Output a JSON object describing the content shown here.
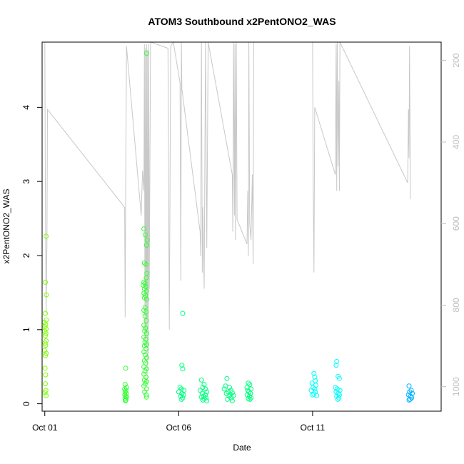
{
  "chart_data": {
    "type": "scatter",
    "title": "ATOM3 Southbound x2PentONO2_WAS",
    "xlabel": "Date",
    "ylabel": "x2PentONO2_WAS",
    "xlim": [
      -0.1,
      14.8
    ],
    "ylim": [
      -0.1,
      4.88
    ],
    "x_ticks": [
      {
        "value": 0,
        "label": "Oct 01"
      },
      {
        "value": 5,
        "label": "Oct 06"
      },
      {
        "value": 10,
        "label": "Oct 11"
      }
    ],
    "y_ticks": [
      {
        "value": 0,
        "label": "0"
      },
      {
        "value": 1,
        "label": "1"
      },
      {
        "value": 2,
        "label": "2"
      },
      {
        "value": 3,
        "label": "3"
      },
      {
        "value": 4,
        "label": "4"
      }
    ],
    "y2_lim": [
      155,
      1060
    ],
    "y2_ticks": [
      {
        "value": 200,
        "label": "200"
      },
      {
        "value": 400,
        "label": "400"
      },
      {
        "value": 600,
        "label": "600"
      },
      {
        "value": 800,
        "label": "800"
      },
      {
        "value": 1000,
        "label": "1000"
      }
    ],
    "y2_reversed": true,
    "grid": false,
    "colors": {
      "ch4": "#7cff00",
      "ch1": "#33ff33",
      "ch2": "#00ff80",
      "ch3": "#00ffc0",
      "ch5": "#00ffff",
      "ch6": "#00b2ff",
      "pressure": "#c8c8c8"
    },
    "series": [
      {
        "points": [
          [
            0.05,
            2.26
          ],
          [
            0.02,
            1.64
          ],
          [
            0.06,
            1.47
          ],
          [
            0.02,
            1.22
          ],
          [
            0.06,
            1.13
          ],
          [
            -0.02,
            1.1
          ],
          [
            0.03,
            1.07
          ],
          [
            0.01,
            1.04
          ],
          [
            0.05,
            1.01
          ],
          [
            -0.01,
            0.98
          ],
          [
            0.04,
            0.95
          ],
          [
            0.02,
            0.92
          ],
          [
            0.05,
            0.85
          ],
          [
            0.01,
            0.82
          ],
          [
            0.03,
            0.79
          ],
          [
            -0.01,
            0.72
          ],
          [
            0.05,
            0.68
          ],
          [
            0.02,
            0.65
          ],
          [
            0.01,
            0.48
          ],
          [
            0.03,
            0.39
          ],
          [
            0.02,
            0.27
          ],
          [
            0.04,
            0.18
          ],
          [
            0.01,
            0.15
          ],
          [
            0.05,
            0.11
          ]
        ],
        "color": "#7cff00"
      },
      {
        "points": [
          [
            3.02,
            0.48
          ],
          [
            3.0,
            0.26
          ],
          [
            3.05,
            0.22
          ],
          [
            2.98,
            0.2
          ],
          [
            3.03,
            0.18
          ],
          [
            3.0,
            0.16
          ],
          [
            3.04,
            0.14
          ],
          [
            2.99,
            0.12
          ],
          [
            3.02,
            0.1
          ],
          [
            3.05,
            0.09
          ],
          [
            3.0,
            0.07
          ],
          [
            3.03,
            0.05
          ],
          [
            3.01,
            0.04
          ],
          [
            3.8,
            4.73
          ],
          [
            3.7,
            2.36
          ],
          [
            3.75,
            2.28
          ],
          [
            3.82,
            2.21
          ],
          [
            3.8,
            2.14
          ],
          [
            3.72,
            1.9
          ],
          [
            3.78,
            1.88
          ],
          [
            3.81,
            1.76
          ],
          [
            3.79,
            1.7
          ],
          [
            3.7,
            1.64
          ],
          [
            3.74,
            1.62
          ],
          [
            3.68,
            1.6
          ],
          [
            3.77,
            1.58
          ],
          [
            3.72,
            1.55
          ],
          [
            3.8,
            1.52
          ],
          [
            3.7,
            1.49
          ],
          [
            3.76,
            1.46
          ],
          [
            3.72,
            1.43
          ],
          [
            3.8,
            1.41
          ],
          [
            3.75,
            1.3
          ],
          [
            3.7,
            1.26
          ],
          [
            3.78,
            1.24
          ],
          [
            3.74,
            1.18
          ],
          [
            3.79,
            1.12
          ],
          [
            3.7,
            1.06
          ],
          [
            3.76,
            1.02
          ],
          [
            3.73,
            0.98
          ],
          [
            3.8,
            0.95
          ],
          [
            3.7,
            0.9
          ],
          [
            3.77,
            0.87
          ],
          [
            3.74,
            0.83
          ],
          [
            3.8,
            0.8
          ],
          [
            3.72,
            0.78
          ],
          [
            3.78,
            0.74
          ],
          [
            3.7,
            0.7
          ],
          [
            3.75,
            0.66
          ],
          [
            3.8,
            0.62
          ],
          [
            3.72,
            0.58
          ],
          [
            3.77,
            0.55
          ],
          [
            3.7,
            0.5
          ],
          [
            3.8,
            0.47
          ],
          [
            3.74,
            0.44
          ],
          [
            3.7,
            0.4
          ],
          [
            3.78,
            0.36
          ],
          [
            3.72,
            0.32
          ],
          [
            3.8,
            0.3
          ],
          [
            3.75,
            0.27
          ],
          [
            3.7,
            0.24
          ],
          [
            3.8,
            0.2
          ],
          [
            3.73,
            0.16
          ],
          [
            3.79,
            0.12
          ],
          [
            3.8,
            0.09
          ]
        ],
        "color": "#33ff33"
      },
      {
        "points": [
          [
            5.15,
            1.22
          ],
          [
            5.12,
            0.52
          ],
          [
            5.15,
            0.47
          ],
          [
            5.05,
            0.22
          ],
          [
            5.1,
            0.2
          ],
          [
            5.2,
            0.18
          ],
          [
            5.0,
            0.16
          ],
          [
            5.12,
            0.14
          ],
          [
            5.18,
            0.12
          ],
          [
            5.08,
            0.1
          ],
          [
            5.15,
            0.08
          ],
          [
            5.1,
            0.06
          ],
          [
            5.85,
            0.32
          ],
          [
            5.95,
            0.26
          ],
          [
            5.9,
            0.22
          ],
          [
            6.0,
            0.2
          ],
          [
            5.8,
            0.18
          ],
          [
            6.05,
            0.16
          ],
          [
            5.88,
            0.14
          ],
          [
            6.0,
            0.12
          ],
          [
            5.92,
            0.1
          ],
          [
            5.85,
            0.09
          ],
          [
            6.02,
            0.08
          ],
          [
            5.95,
            0.07
          ],
          [
            5.9,
            0.05
          ],
          [
            6.05,
            0.04
          ],
          [
            6.8,
            0.34
          ],
          [
            6.75,
            0.24
          ],
          [
            6.9,
            0.22
          ],
          [
            6.7,
            0.2
          ],
          [
            6.95,
            0.18
          ],
          [
            6.85,
            0.16
          ],
          [
            7.0,
            0.15
          ],
          [
            6.78,
            0.14
          ],
          [
            6.92,
            0.12
          ],
          [
            7.05,
            0.11
          ],
          [
            6.88,
            0.1
          ],
          [
            6.96,
            0.08
          ],
          [
            6.82,
            0.06
          ],
          [
            7.0,
            0.04
          ],
          [
            7.6,
            0.28
          ],
          [
            7.65,
            0.26
          ],
          [
            7.55,
            0.22
          ],
          [
            7.7,
            0.2
          ],
          [
            7.58,
            0.18
          ],
          [
            7.62,
            0.16
          ],
          [
            7.68,
            0.14
          ],
          [
            7.56,
            0.12
          ],
          [
            7.64,
            0.1
          ],
          [
            7.7,
            0.08
          ],
          [
            7.6,
            0.07
          ],
          [
            7.66,
            0.06
          ]
        ],
        "color": "#00ff80"
      },
      {
        "points": [
          [
            10.05,
            0.41
          ],
          [
            10.08,
            0.36
          ],
          [
            10.1,
            0.31
          ],
          [
            9.98,
            0.28
          ],
          [
            10.12,
            0.25
          ],
          [
            10.02,
            0.22
          ],
          [
            10.08,
            0.2
          ],
          [
            9.95,
            0.18
          ],
          [
            10.1,
            0.16
          ],
          [
            10.05,
            0.13
          ],
          [
            10.0,
            0.12
          ],
          [
            10.15,
            0.11
          ],
          [
            10.9,
            0.57
          ],
          [
            10.88,
            0.52
          ],
          [
            10.95,
            0.37
          ],
          [
            11.0,
            0.34
          ],
          [
            10.85,
            0.22
          ],
          [
            10.92,
            0.2
          ],
          [
            11.02,
            0.18
          ],
          [
            10.88,
            0.16
          ],
          [
            10.96,
            0.14
          ],
          [
            11.0,
            0.12
          ],
          [
            10.9,
            0.1
          ],
          [
            10.98,
            0.08
          ],
          [
            10.94,
            0.06
          ]
        ],
        "color": "#00ffff"
      },
      {
        "points": [
          [
            13.6,
            0.24
          ],
          [
            13.68,
            0.18
          ],
          [
            13.62,
            0.16
          ],
          [
            13.72,
            0.14
          ],
          [
            13.58,
            0.12
          ],
          [
            13.66,
            0.1
          ],
          [
            13.7,
            0.08
          ],
          [
            13.64,
            0.06
          ],
          [
            13.6,
            0.05
          ]
        ],
        "color": "#00b2ff"
      }
    ],
    "pressure_trace": {
      "axis": "right",
      "color": "#c8c8c8",
      "points": [
        [
          0.0,
          155
        ],
        [
          0.02,
          500
        ],
        [
          0.05,
          820
        ],
        [
          0.08,
          640
        ],
        [
          0.1,
          320
        ],
        [
          2.98,
          560
        ],
        [
          3.0,
          830
        ],
        [
          3.02,
          500
        ],
        [
          3.05,
          165
        ],
        [
          3.6,
          580
        ],
        [
          3.65,
          470
        ],
        [
          3.7,
          520
        ],
        [
          3.72,
          160
        ],
        [
          3.74,
          900
        ],
        [
          3.76,
          170
        ],
        [
          3.78,
          880
        ],
        [
          3.8,
          160
        ],
        [
          3.82,
          990
        ],
        [
          3.84,
          175
        ],
        [
          3.86,
          930
        ],
        [
          3.88,
          160
        ],
        [
          3.9,
          760
        ],
        [
          3.95,
          155
        ],
        [
          4.6,
          170
        ],
        [
          4.65,
          860
        ],
        [
          4.7,
          165
        ],
        [
          4.8,
          155
        ],
        [
          5.05,
          255
        ],
        [
          5.08,
          740
        ],
        [
          5.1,
          155
        ],
        [
          5.12,
          270
        ],
        [
          5.8,
          620
        ],
        [
          5.82,
          680
        ],
        [
          5.85,
          155
        ],
        [
          5.88,
          720
        ],
        [
          5.9,
          560
        ],
        [
          5.95,
          760
        ],
        [
          6.0,
          155
        ],
        [
          6.05,
          660
        ],
        [
          6.1,
          155
        ],
        [
          7.0,
          480
        ],
        [
          7.02,
          620
        ],
        [
          7.05,
          155
        ],
        [
          7.08,
          580
        ],
        [
          7.1,
          160
        ],
        [
          7.12,
          640
        ],
        [
          7.15,
          155
        ],
        [
          7.18,
          590
        ],
        [
          7.55,
          650
        ],
        [
          7.58,
          520
        ],
        [
          7.6,
          680
        ],
        [
          7.62,
          155
        ],
        [
          7.65,
          600
        ],
        [
          7.7,
          640
        ],
        [
          7.75,
          480
        ],
        [
          7.78,
          700
        ],
        [
          7.8,
          155
        ],
        [
          10.0,
          155
        ],
        [
          10.02,
          500
        ],
        [
          10.05,
          720
        ],
        [
          10.08,
          315
        ],
        [
          10.85,
          480
        ],
        [
          10.88,
          160
        ],
        [
          10.9,
          520
        ],
        [
          10.92,
          155
        ],
        [
          10.95,
          460
        ],
        [
          10.98,
          250
        ],
        [
          11.0,
          520
        ],
        [
          11.02,
          155
        ],
        [
          13.55,
          500
        ],
        [
          13.58,
          320
        ],
        [
          13.6,
          440
        ],
        [
          13.62,
          165
        ],
        [
          13.65,
          540
        ]
      ]
    }
  }
}
